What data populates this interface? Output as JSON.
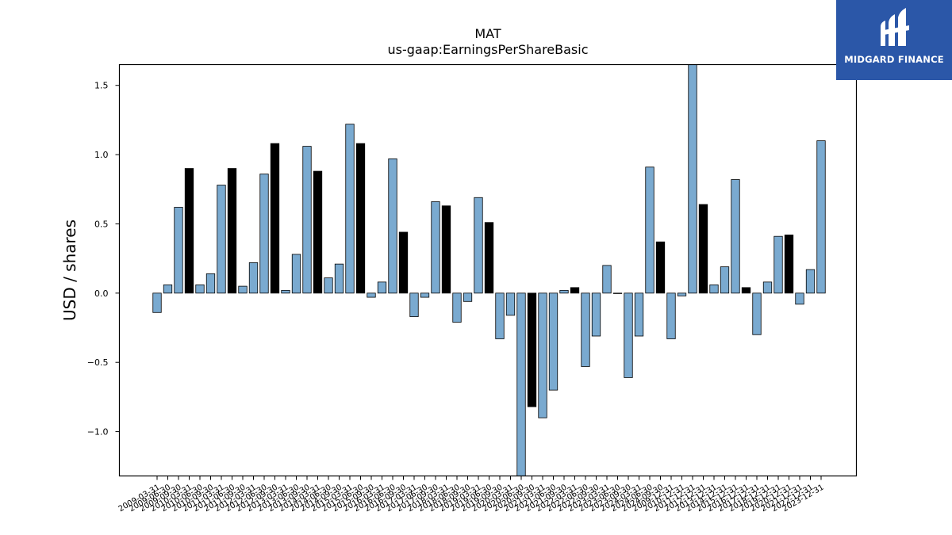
{
  "brand": {
    "name": "MIDGARD FINANCE",
    "colors": {
      "background": "#2b57a8",
      "text": "#ffffff"
    },
    "icon": "midgard-logo-icon"
  },
  "chart_data": {
    "type": "bar",
    "title": "MAT",
    "subtitle": "us-gaap:EarningsPerShareBasic",
    "ylabel": "USD / shares",
    "xlabel": "",
    "ylim": [
      -1.32,
      1.65
    ],
    "yticks": [
      -1.0,
      -0.5,
      0.0,
      0.5,
      1.0,
      1.5
    ],
    "ytick_labels": [
      "−1.0",
      "−0.5",
      "0.0",
      "0.5",
      "1.0",
      "1.5"
    ],
    "grid": false,
    "colors": {
      "quarterly": "#7aaad0",
      "annual": "#000000",
      "edge": "#000000"
    },
    "categories": [
      "2009-03-31",
      "2009-06-30",
      "2009-09-30",
      "2009-12-31",
      "2010-03-31",
      "2010-06-30",
      "2010-09-30",
      "2010-12-31",
      "2011-03-31",
      "2011-06-30",
      "2011-09-30",
      "2011-12-31",
      "2012-03-31",
      "2012-06-30",
      "2012-09-30",
      "2012-12-31",
      "2013-03-31",
      "2013-06-30",
      "2013-09-30",
      "2013-12-31",
      "2014-03-31",
      "2014-06-30",
      "2014-09-30",
      "2014-12-31",
      "2015-03-31",
      "2015-06-30",
      "2015-09-30",
      "2015-12-31",
      "2016-03-31",
      "2016-06-30",
      "2016-09-30",
      "2016-12-31",
      "2017-03-31",
      "2017-06-30",
      "2017-09-30",
      "2017-12-31",
      "2018-03-31",
      "2018-06-30",
      "2018-09-30",
      "2018-12-31",
      "2019-03-31",
      "2019-06-30",
      "2019-09-30",
      "2019-12-31",
      "2020-03-31",
      "2020-06-30",
      "2020-09-30",
      "2020-12-31",
      "2021-03-31",
      "2021-06-30",
      "2021-09-30",
      "2021-12-31",
      "2022-03-31",
      "2022-06-30",
      "2022-09-30",
      "2022-12-31",
      "2023-03-31",
      "2023-06-30",
      "2023-09-30",
      "2023-12-31",
      "2024-03-31",
      "2024-06-30",
      "2024-09-30"
    ],
    "tick_labels": [
      "2009-03-31",
      "2009-06-30",
      "2009-09-30",
      "2010-03-31",
      "2010-06-30",
      "2010-09-30",
      "2011-03-31",
      "2011-06-30",
      "2011-09-30",
      "2012-03-31",
      "2012-06-30",
      "2012-09-30",
      "2013-03-31",
      "2013-06-30",
      "2013-09-30",
      "2014-03-31",
      "2014-06-30",
      "2014-09-30",
      "2015-03-31",
      "2015-06-30",
      "2015-09-30",
      "2016-03-31",
      "2016-06-30",
      "2016-09-30",
      "2017-03-31",
      "2017-06-30",
      "2017-09-30",
      "2018-03-31",
      "2018-06-30",
      "2018-09-30",
      "2019-03-31",
      "2019-06-30",
      "2019-09-30",
      "2020-03-31",
      "2020-06-30",
      "2020-09-30",
      "2021-03-31",
      "2021-06-30",
      "2021-09-30",
      "2022-03-31",
      "2022-06-30",
      "2022-09-30",
      "2023-03-31",
      "2023-06-30",
      "2023-09-30",
      "2024-03-31",
      "2024-06-30",
      "2024-09-30",
      "2009-12-31",
      "2010-12-31",
      "2011-12-31",
      "2012-12-31",
      "2013-12-31",
      "2014-12-31",
      "2015-12-31",
      "2016-12-31",
      "2017-12-31",
      "2018-12-31",
      "2019-12-31",
      "2020-12-31",
      "2021-12-31",
      "2022-12-31",
      "2023-12-31"
    ],
    "values": [
      -0.14,
      0.06,
      0.62,
      0.9,
      0.06,
      0.14,
      0.78,
      0.9,
      0.05,
      0.22,
      0.86,
      1.08,
      0.02,
      0.28,
      1.06,
      0.88,
      0.11,
      0.21,
      1.22,
      1.08,
      -0.03,
      0.08,
      0.97,
      0.44,
      -0.17,
      -0.03,
      0.66,
      0.63,
      -0.21,
      -0.06,
      0.69,
      0.51,
      -0.33,
      -0.16,
      -1.35,
      -0.82,
      -0.9,
      -0.7,
      0.02,
      0.04,
      -0.53,
      -0.31,
      0.2,
      0.0,
      -0.61,
      -0.31,
      0.91,
      0.37,
      -0.33,
      -0.02,
      1.7,
      0.64,
      0.06,
      0.19,
      0.82,
      0.04,
      -0.3,
      0.08,
      0.41,
      0.42,
      -0.08,
      0.17,
      1.1
    ],
    "period": [
      "Q",
      "Q",
      "Q",
      "FY",
      "Q",
      "Q",
      "Q",
      "FY",
      "Q",
      "Q",
      "Q",
      "FY",
      "Q",
      "Q",
      "Q",
      "FY",
      "Q",
      "Q",
      "Q",
      "FY",
      "Q",
      "Q",
      "Q",
      "FY",
      "Q",
      "Q",
      "Q",
      "FY",
      "Q",
      "Q",
      "Q",
      "FY",
      "Q",
      "Q",
      "Q",
      "FY",
      "Q",
      "Q",
      "Q",
      "FY",
      "Q",
      "Q",
      "Q",
      "FY",
      "Q",
      "Q",
      "Q",
      "FY",
      "Q",
      "Q",
      "Q",
      "FY",
      "Q",
      "Q",
      "Q",
      "FY",
      "Q",
      "Q",
      "Q",
      "FY",
      "Q",
      "Q",
      "Q"
    ]
  }
}
